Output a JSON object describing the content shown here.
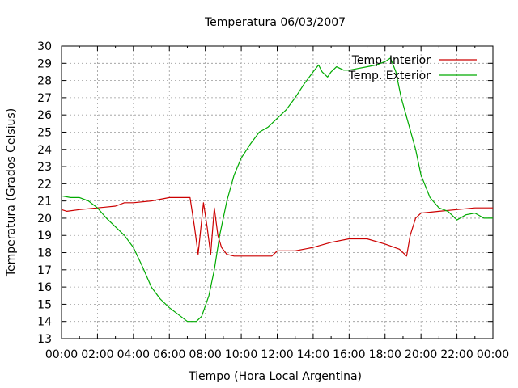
{
  "chart_data": {
    "type": "line",
    "title": "Temperatura 06/03/2007",
    "xlabel": "Tiempo (Hora Local Argentina)",
    "ylabel": "Temperatura (Grados Celsius)",
    "xlim": [
      0,
      24
    ],
    "ylim": [
      13,
      30
    ],
    "grid": true,
    "legend_position": "top-right",
    "x_tick_labels": [
      "00:00",
      "02:00",
      "04:00",
      "06:00",
      "08:00",
      "10:00",
      "12:00",
      "14:00",
      "16:00",
      "18:00",
      "20:00",
      "22:00",
      "00:00"
    ],
    "y_ticks": [
      13,
      14,
      15,
      16,
      17,
      18,
      19,
      20,
      21,
      22,
      23,
      24,
      25,
      26,
      27,
      28,
      29,
      30
    ],
    "series": [
      {
        "name": "Temp. Interior",
        "color": "#cc0000",
        "x": [
          0,
          0.3,
          1,
          2,
          3,
          3.5,
          4,
          5,
          5.5,
          6,
          7,
          7.15,
          7.4,
          7.6,
          7.9,
          8.1,
          8.3,
          8.5,
          8.7,
          8.9,
          9.2,
          9.6,
          10,
          11,
          11.7,
          12,
          13,
          14,
          15,
          16,
          17,
          18,
          18.8,
          19.2,
          19.4,
          19.7,
          20,
          21,
          22,
          23,
          24
        ],
        "y": [
          20.5,
          20.4,
          20.5,
          20.6,
          20.7,
          20.9,
          20.9,
          21.0,
          21.1,
          21.2,
          21.2,
          21.2,
          19.5,
          17.9,
          20.9,
          19.5,
          17.9,
          20.6,
          19.0,
          18.3,
          17.9,
          17.8,
          17.8,
          17.8,
          17.8,
          18.1,
          18.1,
          18.3,
          18.6,
          18.8,
          18.8,
          18.5,
          18.2,
          17.8,
          19.0,
          20.0,
          20.3,
          20.4,
          20.5,
          20.6,
          20.6
        ]
      },
      {
        "name": "Temp. Exterior",
        "color": "#00aa00",
        "x": [
          0,
          0.5,
          1,
          1.5,
          2,
          2.5,
          3,
          3.5,
          4,
          4.5,
          5,
          5.5,
          6,
          6.5,
          7,
          7.5,
          7.8,
          8.2,
          8.5,
          8.8,
          9.2,
          9.6,
          10,
          10.5,
          11,
          11.5,
          12,
          12.5,
          13,
          13.5,
          14,
          14.3,
          14.5,
          14.8,
          15,
          15.3,
          15.7,
          16,
          16.5,
          17,
          17.5,
          18,
          18.3,
          18.6,
          18.9,
          19.3,
          19.7,
          20,
          20.5,
          21,
          21.5,
          22,
          22.5,
          23,
          23.5,
          24
        ],
        "y": [
          21.3,
          21.2,
          21.2,
          21.0,
          20.6,
          20.0,
          19.5,
          19.0,
          18.3,
          17.2,
          16.0,
          15.3,
          14.8,
          14.4,
          14.0,
          14.0,
          14.3,
          15.5,
          17.0,
          19.0,
          21.0,
          22.5,
          23.5,
          24.3,
          25.0,
          25.3,
          25.8,
          26.3,
          27.0,
          27.8,
          28.5,
          28.9,
          28.5,
          28.2,
          28.5,
          28.8,
          28.6,
          28.6,
          28.7,
          28.8,
          28.9,
          29.1,
          29.3,
          28.5,
          27.0,
          25.5,
          24.0,
          22.5,
          21.2,
          20.6,
          20.4,
          19.9,
          20.2,
          20.3,
          20.0,
          20.0
        ]
      }
    ]
  }
}
